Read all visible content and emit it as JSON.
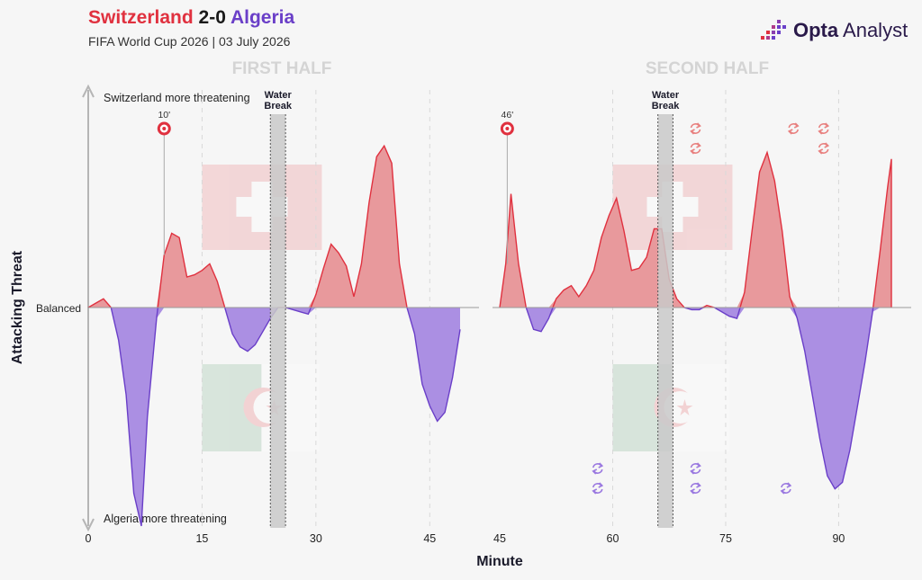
{
  "header": {
    "home_team": "Switzerland",
    "score": "2-0",
    "away_team": "Algeria",
    "subtitle": "FIFA World Cup 2026 | 03 July 2026",
    "logo_bold": "Opta",
    "logo_light": "Analyst"
  },
  "colors": {
    "home": "#e0313f",
    "home_fill": "#e8999c",
    "away": "#6a3fc8",
    "away_fill": "#ab8fe3",
    "water_break": "#c9c9c9"
  },
  "chart_data": {
    "type": "area",
    "xlabel": "Minute",
    "ylabel": "Attacking Threat",
    "top_label": "Switzerland more threatening",
    "bottom_label": "Algeria more threatening",
    "balanced_label": "Balanced",
    "ylim": [
      -1,
      1
    ],
    "halves": [
      {
        "title": "FIRST HALF",
        "xlim": [
          0,
          49
        ],
        "ticks": [
          0,
          15,
          30,
          45
        ],
        "water_break": {
          "start": 24,
          "end": 26,
          "label_line1": "Water",
          "label_line2": "Break"
        },
        "goals": [
          {
            "minute": 10,
            "label": "10'"
          }
        ],
        "home_subs": [],
        "away_subs": [],
        "series": [
          {
            "x": 0,
            "y": 0
          },
          {
            "x": 1,
            "y": 0.02
          },
          {
            "x": 2,
            "y": 0.04
          },
          {
            "x": 3,
            "y": 0
          },
          {
            "x": 4,
            "y": -0.15
          },
          {
            "x": 5,
            "y": -0.4
          },
          {
            "x": 6,
            "y": -0.85
          },
          {
            "x": 7,
            "y": -1.0
          },
          {
            "x": 7.8,
            "y": -0.5
          },
          {
            "x": 9,
            "y": -0.05
          },
          {
            "x": 10,
            "y": 0.24
          },
          {
            "x": 11,
            "y": 0.34
          },
          {
            "x": 12,
            "y": 0.32
          },
          {
            "x": 13,
            "y": 0.14
          },
          {
            "x": 14,
            "y": 0.15
          },
          {
            "x": 15,
            "y": 0.17
          },
          {
            "x": 16,
            "y": 0.2
          },
          {
            "x": 17,
            "y": 0.12
          },
          {
            "x": 18,
            "y": 0.0
          },
          {
            "x": 19,
            "y": -0.12
          },
          {
            "x": 20,
            "y": -0.18
          },
          {
            "x": 21,
            "y": -0.2
          },
          {
            "x": 22,
            "y": -0.17
          },
          {
            "x": 23,
            "y": -0.11
          },
          {
            "x": 24,
            "y": -0.05
          },
          {
            "x": 25,
            "y": 0.0
          },
          {
            "x": 26,
            "y": 0.0
          },
          {
            "x": 27,
            "y": -0.01
          },
          {
            "x": 28,
            "y": -0.02
          },
          {
            "x": 29,
            "y": -0.03
          },
          {
            "x": 30,
            "y": 0.06
          },
          {
            "x": 31,
            "y": 0.18
          },
          {
            "x": 32,
            "y": 0.29
          },
          {
            "x": 33,
            "y": 0.25
          },
          {
            "x": 34,
            "y": 0.19
          },
          {
            "x": 35,
            "y": 0.05
          },
          {
            "x": 36,
            "y": 0.2
          },
          {
            "x": 37,
            "y": 0.48
          },
          {
            "x": 38,
            "y": 0.69
          },
          {
            "x": 39,
            "y": 0.74
          },
          {
            "x": 40,
            "y": 0.66
          },
          {
            "x": 41,
            "y": 0.2
          },
          {
            "x": 42,
            "y": 0.0
          },
          {
            "x": 43,
            "y": -0.12
          },
          {
            "x": 44,
            "y": -0.35
          },
          {
            "x": 45,
            "y": -0.45
          },
          {
            "x": 46,
            "y": -0.52
          },
          {
            "x": 47,
            "y": -0.48
          },
          {
            "x": 48,
            "y": -0.32
          },
          {
            "x": 49,
            "y": -0.1
          }
        ]
      },
      {
        "title": "SECOND HALF",
        "xlim": [
          45,
          97
        ],
        "ticks": [
          45,
          60,
          75,
          90
        ],
        "water_break": {
          "start": 66,
          "end": 68,
          "label_line1": "Water",
          "label_line2": "Break"
        },
        "goals": [
          {
            "minute": 46,
            "label": "46'"
          }
        ],
        "home_subs": [
          {
            "minute": 71,
            "row": 0
          },
          {
            "minute": 71,
            "row": 1
          },
          {
            "minute": 84,
            "row": 0
          },
          {
            "minute": 88,
            "row": 0
          },
          {
            "minute": 88,
            "row": 1
          }
        ],
        "away_subs": [
          {
            "minute": 58,
            "row": 0
          },
          {
            "minute": 58,
            "row": 1
          },
          {
            "minute": 71,
            "row": 0
          },
          {
            "minute": 71,
            "row": 1
          },
          {
            "minute": 83,
            "row": 1
          }
        ],
        "series": [
          {
            "x": 45,
            "y": 0
          },
          {
            "x": 45.8,
            "y": 0.2
          },
          {
            "x": 46.5,
            "y": 0.52
          },
          {
            "x": 47.5,
            "y": 0.2
          },
          {
            "x": 48.5,
            "y": 0.0
          },
          {
            "x": 49.5,
            "y": -0.1
          },
          {
            "x": 50.5,
            "y": -0.11
          },
          {
            "x": 51.5,
            "y": -0.05
          },
          {
            "x": 52.5,
            "y": 0.04
          },
          {
            "x": 53.5,
            "y": 0.08
          },
          {
            "x": 54.5,
            "y": 0.1
          },
          {
            "x": 55.5,
            "y": 0.05
          },
          {
            "x": 56.5,
            "y": 0.1
          },
          {
            "x": 57.5,
            "y": 0.17
          },
          {
            "x": 58.5,
            "y": 0.32
          },
          {
            "x": 59.5,
            "y": 0.42
          },
          {
            "x": 60.5,
            "y": 0.5
          },
          {
            "x": 61.5,
            "y": 0.35
          },
          {
            "x": 62.5,
            "y": 0.17
          },
          {
            "x": 63.5,
            "y": 0.18
          },
          {
            "x": 64.5,
            "y": 0.23
          },
          {
            "x": 65.5,
            "y": 0.36
          },
          {
            "x": 66.5,
            "y": 0.36
          },
          {
            "x": 67.5,
            "y": 0.13
          },
          {
            "x": 68.5,
            "y": 0.04
          },
          {
            "x": 69.5,
            "y": 0.0
          },
          {
            "x": 70.5,
            "y": -0.01
          },
          {
            "x": 71.5,
            "y": -0.01
          },
          {
            "x": 72.5,
            "y": 0.01
          },
          {
            "x": 73.5,
            "y": 0.0
          },
          {
            "x": 74.5,
            "y": -0.02
          },
          {
            "x": 75.5,
            "y": -0.04
          },
          {
            "x": 76.5,
            "y": -0.05
          },
          {
            "x": 77.5,
            "y": 0.07
          },
          {
            "x": 78.5,
            "y": 0.35
          },
          {
            "x": 79.5,
            "y": 0.62
          },
          {
            "x": 80.5,
            "y": 0.71
          },
          {
            "x": 81.5,
            "y": 0.58
          },
          {
            "x": 82.5,
            "y": 0.35
          },
          {
            "x": 83.5,
            "y": 0.05
          },
          {
            "x": 84.5,
            "y": -0.05
          },
          {
            "x": 85.5,
            "y": -0.2
          },
          {
            "x": 86.5,
            "y": -0.4
          },
          {
            "x": 87.5,
            "y": -0.6
          },
          {
            "x": 88.5,
            "y": -0.77
          },
          {
            "x": 89.5,
            "y": -0.83
          },
          {
            "x": 90.5,
            "y": -0.8
          },
          {
            "x": 91.5,
            "y": -0.65
          },
          {
            "x": 92.5,
            "y": -0.45
          },
          {
            "x": 93.5,
            "y": -0.25
          },
          {
            "x": 94.5,
            "y": -0.02
          },
          {
            "x": 95.5,
            "y": 0.26
          },
          {
            "x": 96.5,
            "y": 0.55
          },
          {
            "x": 97,
            "y": 0.68
          },
          {
            "x": 97,
            "y": 0
          }
        ]
      }
    ]
  }
}
